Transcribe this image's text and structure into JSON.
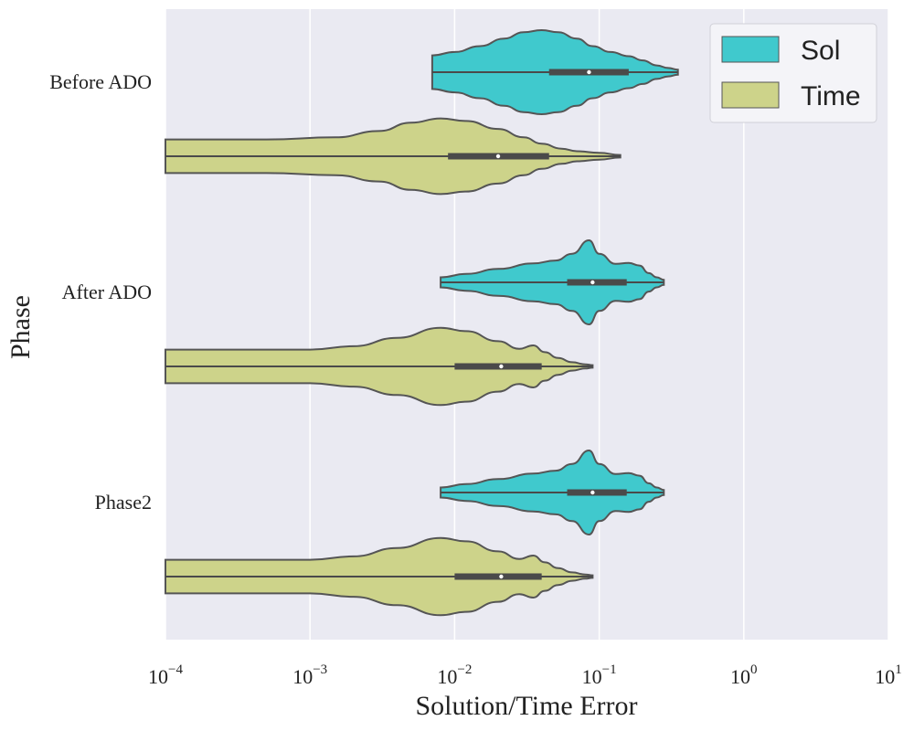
{
  "chart_data": {
    "type": "violin",
    "orientation": "horizontal",
    "xscale": "log",
    "xlim": [
      0.0001,
      10
    ],
    "x_ticks": [
      {
        "value": 0.0001,
        "base": "10",
        "exp": "−4"
      },
      {
        "value": 0.001,
        "base": "10",
        "exp": "−3"
      },
      {
        "value": 0.01,
        "base": "10",
        "exp": "−2"
      },
      {
        "value": 0.1,
        "base": "10",
        "exp": "−1"
      },
      {
        "value": 1,
        "base": "10",
        "exp": "0"
      },
      {
        "value": 10,
        "base": "10",
        "exp": "1"
      }
    ],
    "xlabel": "Solution/Time Error",
    "ylabel": "Phase",
    "grid": true,
    "legend_position": "top-right",
    "categories": [
      "Before ADO",
      "After ADO",
      "Phase2"
    ],
    "series": [
      {
        "name": "Sol",
        "color": "#40c9cd",
        "violins": [
          {
            "category": "Before ADO",
            "min": 0.007,
            "q1": 0.045,
            "median": 0.085,
            "q3": 0.16,
            "max": 0.35,
            "profile": [
              [
                0.007,
                0.4
              ],
              [
                0.01,
                0.48
              ],
              [
                0.015,
                0.62
              ],
              [
                0.022,
                0.8
              ],
              [
                0.03,
                0.95
              ],
              [
                0.04,
                1.0
              ],
              [
                0.052,
                0.95
              ],
              [
                0.07,
                0.8
              ],
              [
                0.09,
                0.62
              ],
              [
                0.12,
                0.48
              ],
              [
                0.16,
                0.38
              ],
              [
                0.2,
                0.28
              ],
              [
                0.25,
                0.16
              ],
              [
                0.3,
                0.1
              ],
              [
                0.35,
                0.06
              ]
            ]
          },
          {
            "category": "After ADO",
            "min": 0.008,
            "q1": 0.06,
            "median": 0.09,
            "q3": 0.155,
            "max": 0.28,
            "profile": [
              [
                0.008,
                0.12
              ],
              [
                0.012,
                0.2
              ],
              [
                0.02,
                0.32
              ],
              [
                0.035,
                0.45
              ],
              [
                0.05,
                0.52
              ],
              [
                0.065,
                0.68
              ],
              [
                0.085,
                1.0
              ],
              [
                0.1,
                0.68
              ],
              [
                0.13,
                0.44
              ],
              [
                0.16,
                0.46
              ],
              [
                0.19,
                0.4
              ],
              [
                0.22,
                0.22
              ],
              [
                0.25,
                0.12
              ],
              [
                0.28,
                0.06
              ]
            ]
          },
          {
            "category": "Phase2",
            "min": 0.008,
            "q1": 0.06,
            "median": 0.09,
            "q3": 0.155,
            "max": 0.28,
            "profile": [
              [
                0.008,
                0.12
              ],
              [
                0.012,
                0.2
              ],
              [
                0.02,
                0.32
              ],
              [
                0.035,
                0.45
              ],
              [
                0.05,
                0.52
              ],
              [
                0.065,
                0.68
              ],
              [
                0.085,
                1.0
              ],
              [
                0.1,
                0.68
              ],
              [
                0.13,
                0.44
              ],
              [
                0.16,
                0.46
              ],
              [
                0.19,
                0.4
              ],
              [
                0.22,
                0.22
              ],
              [
                0.25,
                0.12
              ],
              [
                0.28,
                0.06
              ]
            ]
          }
        ]
      },
      {
        "name": "Time",
        "color": "#cdd38a",
        "violins": [
          {
            "category": "Before ADO",
            "min": 0.0001,
            "q1": 0.009,
            "median": 0.02,
            "q3": 0.045,
            "max": 0.14,
            "profile": [
              [
                0.0001,
                0.4
              ],
              [
                0.0005,
                0.4
              ],
              [
                0.0015,
                0.45
              ],
              [
                0.003,
                0.6
              ],
              [
                0.005,
                0.8
              ],
              [
                0.008,
                0.9
              ],
              [
                0.012,
                0.84
              ],
              [
                0.02,
                0.65
              ],
              [
                0.03,
                0.45
              ],
              [
                0.04,
                0.3
              ],
              [
                0.055,
                0.18
              ],
              [
                0.07,
                0.12
              ],
              [
                0.1,
                0.08
              ],
              [
                0.14,
                0.03
              ]
            ]
          },
          {
            "category": "After ADO",
            "min": 0.0001,
            "q1": 0.01,
            "median": 0.021,
            "q3": 0.04,
            "max": 0.09,
            "profile": [
              [
                0.0001,
                0.4
              ],
              [
                0.001,
                0.4
              ],
              [
                0.002,
                0.48
              ],
              [
                0.004,
                0.68
              ],
              [
                0.008,
                0.92
              ],
              [
                0.012,
                0.84
              ],
              [
                0.02,
                0.6
              ],
              [
                0.028,
                0.42
              ],
              [
                0.035,
                0.5
              ],
              [
                0.042,
                0.34
              ],
              [
                0.052,
                0.2
              ],
              [
                0.065,
                0.1
              ],
              [
                0.08,
                0.05
              ],
              [
                0.09,
                0.03
              ]
            ]
          },
          {
            "category": "Phase2",
            "min": 0.0001,
            "q1": 0.01,
            "median": 0.021,
            "q3": 0.04,
            "max": 0.09,
            "profile": [
              [
                0.0001,
                0.4
              ],
              [
                0.001,
                0.4
              ],
              [
                0.002,
                0.48
              ],
              [
                0.004,
                0.68
              ],
              [
                0.008,
                0.92
              ],
              [
                0.012,
                0.84
              ],
              [
                0.02,
                0.6
              ],
              [
                0.028,
                0.42
              ],
              [
                0.035,
                0.5
              ],
              [
                0.042,
                0.34
              ],
              [
                0.052,
                0.2
              ],
              [
                0.065,
                0.1
              ],
              [
                0.08,
                0.05
              ],
              [
                0.09,
                0.03
              ]
            ]
          }
        ]
      }
    ]
  }
}
